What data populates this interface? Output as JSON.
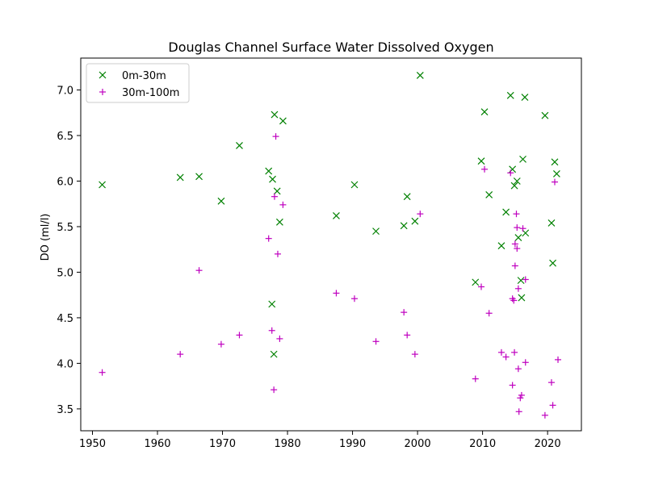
{
  "chart_data": {
    "type": "scatter",
    "title": "Douglas Channel Surface Water Dissolved Oxygen",
    "xlabel": "",
    "ylabel": "DO (ml/l)",
    "xlim": [
      1948.2,
      2025.2
    ],
    "ylim": [
      3.26,
      7.35
    ],
    "xticks": [
      1950,
      1960,
      1970,
      1980,
      1990,
      2000,
      2010,
      2020
    ],
    "yticks": [
      3.5,
      4.0,
      4.5,
      5.0,
      5.5,
      6.0,
      6.5,
      7.0
    ],
    "ytick_labels": [
      "3.5",
      "4.0",
      "4.5",
      "5.0",
      "5.5",
      "6.0",
      "6.5",
      "7.0"
    ],
    "grid": false,
    "legend_position": "top-left",
    "series": [
      {
        "name": "0m-30m",
        "marker": "x",
        "color": "#008000",
        "points": [
          [
            1951.5,
            5.96
          ],
          [
            1963.5,
            6.04
          ],
          [
            1966.4,
            6.05
          ],
          [
            1969.8,
            5.78
          ],
          [
            1972.6,
            6.39
          ],
          [
            1977.1,
            6.11
          ],
          [
            1977.7,
            6.02
          ],
          [
            1978.0,
            6.73
          ],
          [
            1978.4,
            5.89
          ],
          [
            1978.8,
            5.55
          ],
          [
            1979.3,
            6.66
          ],
          [
            1977.6,
            4.65
          ],
          [
            1977.9,
            4.1
          ],
          [
            1987.5,
            5.62
          ],
          [
            1990.3,
            5.96
          ],
          [
            1993.6,
            5.45
          ],
          [
            1997.9,
            5.51
          ],
          [
            1998.4,
            5.83
          ],
          [
            1999.6,
            5.56
          ],
          [
            2000.4,
            7.16
          ],
          [
            2008.9,
            4.89
          ],
          [
            2009.8,
            6.22
          ],
          [
            2010.3,
            6.76
          ],
          [
            2011.0,
            5.85
          ],
          [
            2012.9,
            5.29
          ],
          [
            2013.6,
            5.66
          ],
          [
            2014.3,
            6.94
          ],
          [
            2014.6,
            6.13
          ],
          [
            2014.9,
            5.95
          ],
          [
            2015.3,
            6.0
          ],
          [
            2015.5,
            5.38
          ],
          [
            2015.9,
            4.91
          ],
          [
            2016.0,
            4.72
          ],
          [
            2016.2,
            6.24
          ],
          [
            2016.5,
            6.92
          ],
          [
            2016.6,
            5.43
          ],
          [
            2019.6,
            6.72
          ],
          [
            2020.6,
            5.54
          ],
          [
            2020.8,
            5.1
          ],
          [
            2021.1,
            6.21
          ],
          [
            2021.4,
            6.08
          ]
        ]
      },
      {
        "name": "30m-100m",
        "marker": "+",
        "color": "#bf00bf",
        "points": [
          [
            1951.5,
            3.9
          ],
          [
            1963.5,
            4.1
          ],
          [
            1966.4,
            5.02
          ],
          [
            1969.8,
            4.21
          ],
          [
            1972.6,
            4.31
          ],
          [
            1977.1,
            5.37
          ],
          [
            1977.6,
            4.36
          ],
          [
            1977.9,
            3.71
          ],
          [
            1978.0,
            5.83
          ],
          [
            1978.2,
            6.49
          ],
          [
            1978.5,
            5.2
          ],
          [
            1978.8,
            4.27
          ],
          [
            1979.3,
            5.74
          ],
          [
            1987.5,
            4.77
          ],
          [
            1990.3,
            4.71
          ],
          [
            1993.6,
            4.24
          ],
          [
            1997.9,
            4.56
          ],
          [
            1998.4,
            4.31
          ],
          [
            1999.6,
            4.1
          ],
          [
            2000.4,
            5.64
          ],
          [
            2008.9,
            3.83
          ],
          [
            2009.8,
            4.84
          ],
          [
            2010.3,
            6.13
          ],
          [
            2011.0,
            4.55
          ],
          [
            2012.9,
            4.12
          ],
          [
            2013.6,
            4.07
          ],
          [
            2014.3,
            6.09
          ],
          [
            2014.6,
            4.71
          ],
          [
            2014.6,
            3.76
          ],
          [
            2014.8,
            4.69
          ],
          [
            2014.9,
            4.12
          ],
          [
            2015.0,
            5.31
          ],
          [
            2015.0,
            5.07
          ],
          [
            2015.2,
            5.64
          ],
          [
            2015.3,
            5.49
          ],
          [
            2015.3,
            5.26
          ],
          [
            2015.5,
            4.82
          ],
          [
            2015.5,
            3.94
          ],
          [
            2015.6,
            3.47
          ],
          [
            2015.8,
            3.62
          ],
          [
            2016.0,
            3.65
          ],
          [
            2016.2,
            5.48
          ],
          [
            2016.6,
            4.01
          ],
          [
            2016.6,
            4.92
          ],
          [
            2019.6,
            3.43
          ],
          [
            2020.6,
            3.79
          ],
          [
            2020.8,
            3.54
          ],
          [
            2021.1,
            5.99
          ],
          [
            2021.6,
            4.04
          ]
        ]
      }
    ]
  }
}
